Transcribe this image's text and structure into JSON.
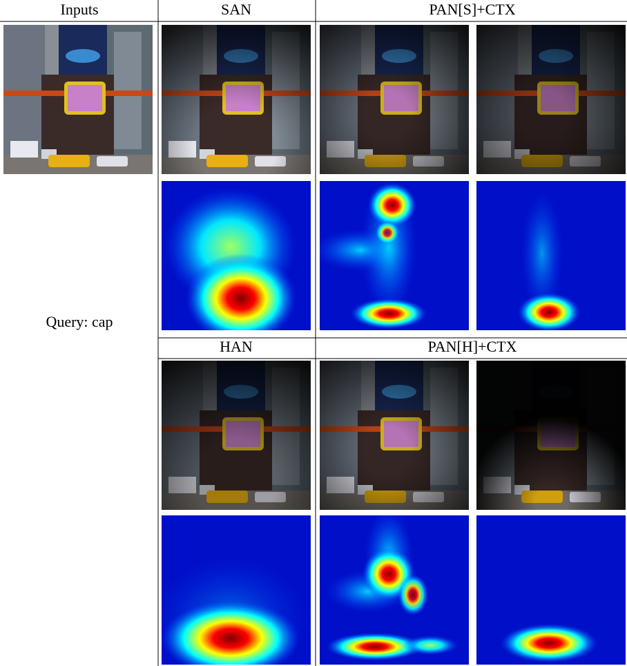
{
  "header": {
    "inputs": "Inputs",
    "san": "SAN",
    "pan_s": "PAN[S]+CTX",
    "han": "HAN",
    "pan_h": "PAN[H]+CTX"
  },
  "query": "Query: cap"
}
